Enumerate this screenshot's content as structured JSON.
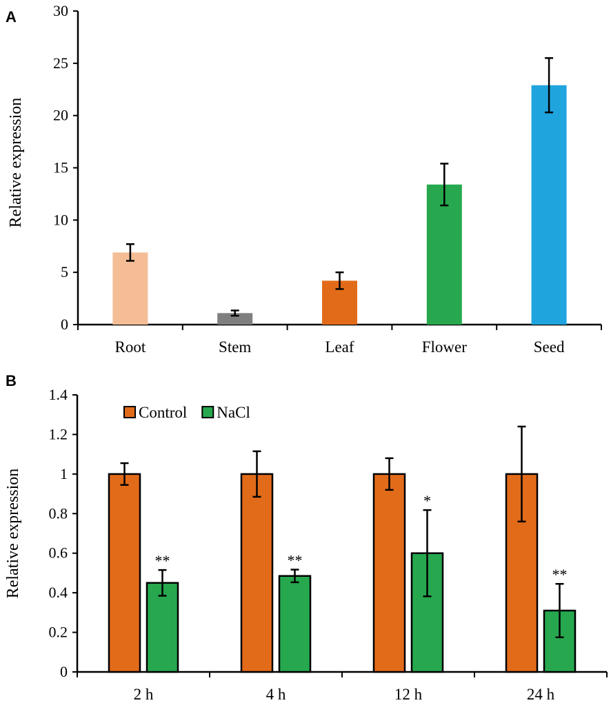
{
  "chart_data": [
    {
      "panel": "A",
      "type": "bar",
      "ylabel": "Relative expression",
      "xlabel": "",
      "ylim": [
        0,
        30
      ],
      "yticks": [
        0,
        5,
        10,
        15,
        20,
        25,
        30
      ],
      "categories": [
        "Root",
        "Stem",
        "Leaf",
        "Flower",
        "Seed"
      ],
      "values": [
        6.9,
        1.1,
        4.2,
        13.4,
        22.9
      ],
      "errors": [
        0.8,
        0.25,
        0.8,
        2.0,
        2.6
      ],
      "colors": [
        "#f4bd95",
        "#7f7f7f",
        "#e26b1a",
        "#27a84f",
        "#1fa4de"
      ]
    },
    {
      "panel": "B",
      "type": "bar",
      "ylabel": "Relative expression",
      "xlabel": "",
      "ylim": [
        0,
        1.4
      ],
      "yticks": [
        "0",
        "0.2",
        "0.4",
        "0.6",
        "0.8",
        "1",
        "1.2",
        "1.4"
      ],
      "categories": [
        "2 h",
        "4 h",
        "12 h",
        "24 h"
      ],
      "legend": {
        "position": "top-left"
      },
      "series": [
        {
          "name": "Control",
          "color": "#e26b1a",
          "values": [
            1.0,
            1.0,
            1.0,
            1.0
          ],
          "errors": [
            0.055,
            0.115,
            0.08,
            0.24
          ],
          "significance": [
            "",
            "",
            "",
            ""
          ]
        },
        {
          "name": "NaCl",
          "color": "#27a84f",
          "values": [
            0.45,
            0.485,
            0.6,
            0.31
          ],
          "errors": [
            0.065,
            0.032,
            0.218,
            0.135
          ],
          "significance": [
            "**",
            "**",
            "*",
            "**"
          ]
        }
      ]
    }
  ]
}
